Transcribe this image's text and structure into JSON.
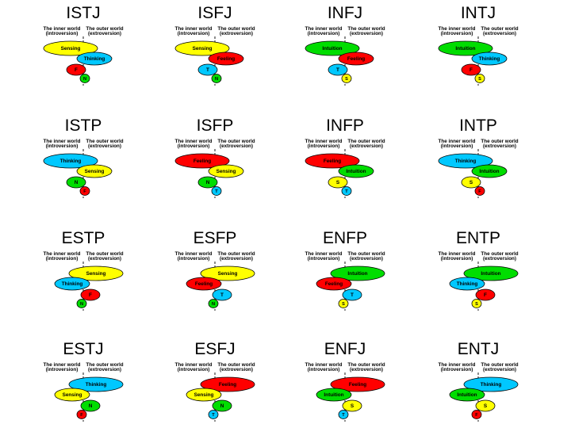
{
  "header": {
    "inner_1": "The inner world",
    "inner_2": "(introversion)",
    "outer_1": "The outer world",
    "outer_2": "(extroversion)"
  },
  "colors": {
    "Sensing": "#ffff00",
    "Intuition": "#00dd00",
    "Thinking": "#00c8ff",
    "Feeling": "#ff0000",
    "S": "#ffff00",
    "N": "#00dd00",
    "T": "#00c8ff",
    "F": "#ff0000",
    "stroke": "#000000",
    "axis": "#000000"
  },
  "types": [
    {
      "name": "ISTJ",
      "f1": {
        "label": "Sensing",
        "side": "in"
      },
      "f2": {
        "label": "Thinking",
        "side": "out"
      },
      "f3": {
        "label": "F",
        "side": "in"
      },
      "f4": {
        "label": "N",
        "side": "out"
      }
    },
    {
      "name": "ISFJ",
      "f1": {
        "label": "Sensing",
        "side": "in"
      },
      "f2": {
        "label": "Feeling",
        "side": "out"
      },
      "f3": {
        "label": "T",
        "side": "in"
      },
      "f4": {
        "label": "N",
        "side": "out"
      }
    },
    {
      "name": "INFJ",
      "f1": {
        "label": "Intuition",
        "side": "in"
      },
      "f2": {
        "label": "Feeling",
        "side": "out"
      },
      "f3": {
        "label": "T",
        "side": "in"
      },
      "f4": {
        "label": "S",
        "side": "out"
      }
    },
    {
      "name": "INTJ",
      "f1": {
        "label": "Intuition",
        "side": "in"
      },
      "f2": {
        "label": "Thinking",
        "side": "out"
      },
      "f3": {
        "label": "F",
        "side": "in"
      },
      "f4": {
        "label": "S",
        "side": "out"
      }
    },
    {
      "name": "ISTP",
      "f1": {
        "label": "Thinking",
        "side": "in"
      },
      "f2": {
        "label": "Sensing",
        "side": "out"
      },
      "f3": {
        "label": "N",
        "side": "in"
      },
      "f4": {
        "label": "F",
        "side": "out"
      }
    },
    {
      "name": "ISFP",
      "f1": {
        "label": "Feeling",
        "side": "in"
      },
      "f2": {
        "label": "Sensing",
        "side": "out"
      },
      "f3": {
        "label": "N",
        "side": "in"
      },
      "f4": {
        "label": "T",
        "side": "out"
      }
    },
    {
      "name": "INFP",
      "f1": {
        "label": "Feeling",
        "side": "in"
      },
      "f2": {
        "label": "Intuition",
        "side": "out"
      },
      "f3": {
        "label": "S",
        "side": "in"
      },
      "f4": {
        "label": "T",
        "side": "out"
      }
    },
    {
      "name": "INTP",
      "f1": {
        "label": "Thinking",
        "side": "in"
      },
      "f2": {
        "label": "Intuition",
        "side": "out"
      },
      "f3": {
        "label": "S",
        "side": "in"
      },
      "f4": {
        "label": "F",
        "side": "out"
      }
    },
    {
      "name": "ESTP",
      "f1": {
        "label": "Sensing",
        "side": "out"
      },
      "f2": {
        "label": "Thinking",
        "side": "in"
      },
      "f3": {
        "label": "F",
        "side": "out"
      },
      "f4": {
        "label": "N",
        "side": "in"
      }
    },
    {
      "name": "ESFP",
      "f1": {
        "label": "Sensing",
        "side": "out"
      },
      "f2": {
        "label": "Feeling",
        "side": "in"
      },
      "f3": {
        "label": "T",
        "side": "out"
      },
      "f4": {
        "label": "N",
        "side": "in"
      }
    },
    {
      "name": "ENFP",
      "f1": {
        "label": "Intuition",
        "side": "out"
      },
      "f2": {
        "label": "Feeling",
        "side": "in"
      },
      "f3": {
        "label": "T",
        "side": "out"
      },
      "f4": {
        "label": "S",
        "side": "in"
      }
    },
    {
      "name": "ENTP",
      "f1": {
        "label": "Intuition",
        "side": "out"
      },
      "f2": {
        "label": "Thinking",
        "side": "in"
      },
      "f3": {
        "label": "F",
        "side": "out"
      },
      "f4": {
        "label": "S",
        "side": "in"
      }
    },
    {
      "name": "ESTJ",
      "f1": {
        "label": "Thinking",
        "side": "out"
      },
      "f2": {
        "label": "Sensing",
        "side": "in"
      },
      "f3": {
        "label": "N",
        "side": "out"
      },
      "f4": {
        "label": "F",
        "side": "in"
      }
    },
    {
      "name": "ESFJ",
      "f1": {
        "label": "Feeling",
        "side": "out"
      },
      "f2": {
        "label": "Sensing",
        "side": "in"
      },
      "f3": {
        "label": "N",
        "side": "out"
      },
      "f4": {
        "label": "T",
        "side": "in"
      }
    },
    {
      "name": "ENFJ",
      "f1": {
        "label": "Feeling",
        "side": "out"
      },
      "f2": {
        "label": "Intuition",
        "side": "in"
      },
      "f3": {
        "label": "S",
        "side": "out"
      },
      "f4": {
        "label": "T",
        "side": "in"
      }
    },
    {
      "name": "ENTJ",
      "f1": {
        "label": "Thinking",
        "side": "out"
      },
      "f2": {
        "label": "Intuition",
        "side": "in"
      },
      "f3": {
        "label": "S",
        "side": "out"
      },
      "f4": {
        "label": "F",
        "side": "in"
      }
    }
  ]
}
